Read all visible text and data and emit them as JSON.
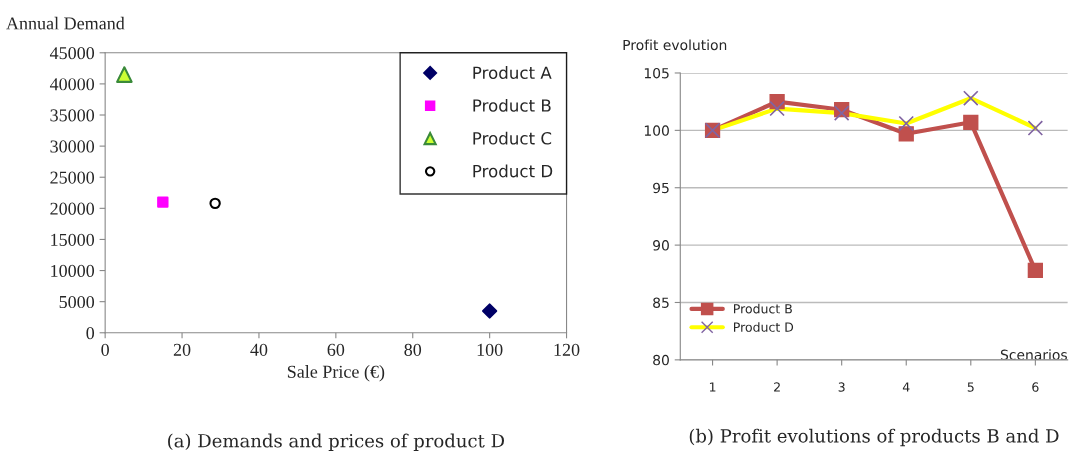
{
  "chart_data": [
    {
      "type": "scatter",
      "xlabel": "Sale Price (€)",
      "ylabel": "Annual Demand",
      "xlim": [
        0,
        120
      ],
      "xticks": [
        0,
        20,
        40,
        60,
        80,
        100,
        120
      ],
      "ylim": [
        0,
        45000
      ],
      "yticks": [
        0,
        5000,
        10000,
        15000,
        20000,
        25000,
        30000,
        35000,
        40000,
        45000
      ],
      "grid": false,
      "legend": "top right",
      "series": [
        {
          "name": "Product A",
          "color": "#000066",
          "marker": "diamond",
          "x": [
            100
          ],
          "values": [
            3500
          ]
        },
        {
          "name": "Product B",
          "color": "#ff00ff",
          "marker": "square",
          "x": [
            15
          ],
          "values": [
            21000
          ]
        },
        {
          "name": "Product C",
          "color": "#ccff33",
          "marker": "triangle",
          "x": [
            5
          ],
          "values": [
            41500
          ]
        },
        {
          "name": "Product D",
          "color": "#000000",
          "marker": "circle",
          "x": [
            28.6
          ],
          "values": [
            20800
          ]
        }
      ],
      "annotations": [
        "(a) Demands and prices of product D"
      ]
    },
    {
      "type": "line",
      "xlabel": "Scenarios",
      "ylabel": "Profit evolution",
      "categories": [
        "1",
        "2",
        "3",
        "4",
        "5",
        "6"
      ],
      "ylim": [
        80,
        105
      ],
      "yticks": [
        80,
        85,
        90,
        95,
        100,
        105
      ],
      "grid": "y",
      "legend": "bottom left",
      "series": [
        {
          "name": "Product B",
          "color": "#c0504d",
          "marker": "square",
          "values": [
            100,
            102.5,
            101.8,
            99.7,
            100.7,
            87.8
          ]
        },
        {
          "name": "Product D",
          "color": "#ffff00",
          "marker": "cross",
          "values": [
            100,
            101.9,
            101.5,
            100.6,
            102.8,
            100.2
          ]
        }
      ],
      "annotations": [
        "(b) Profit evolutions of products B and D"
      ]
    }
  ]
}
